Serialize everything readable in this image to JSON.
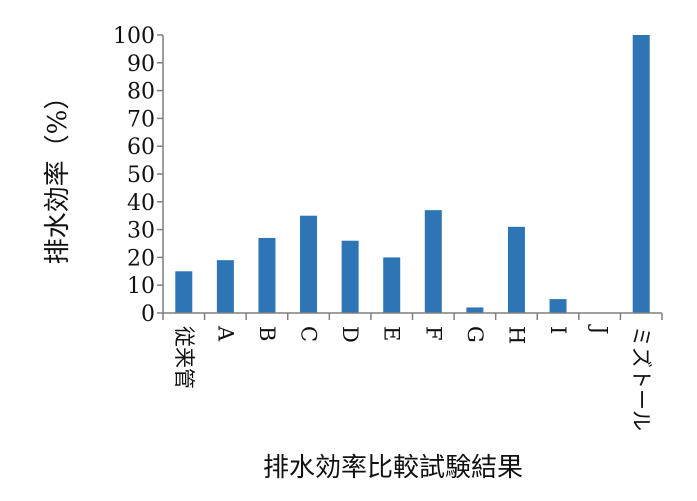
{
  "chart_data": {
    "type": "bar",
    "title": "",
    "xlabel": "排水効率比較試験結果",
    "ylabel": "排水効率（%）",
    "categories": [
      "従来管",
      "A",
      "B",
      "C",
      "D",
      "E",
      "F",
      "G",
      "H",
      "I",
      "J",
      "ミズトール"
    ],
    "values": [
      15,
      19,
      27,
      35,
      26,
      20,
      37,
      2,
      31,
      5,
      0,
      100
    ],
    "ylim": [
      0,
      100
    ],
    "yticks": [
      0,
      10,
      20,
      30,
      40,
      50,
      60,
      70,
      80,
      90,
      100
    ],
    "grid": false,
    "legend": "none",
    "bar_color": "#2e75b6",
    "axis_color": "#7f7f7f"
  }
}
